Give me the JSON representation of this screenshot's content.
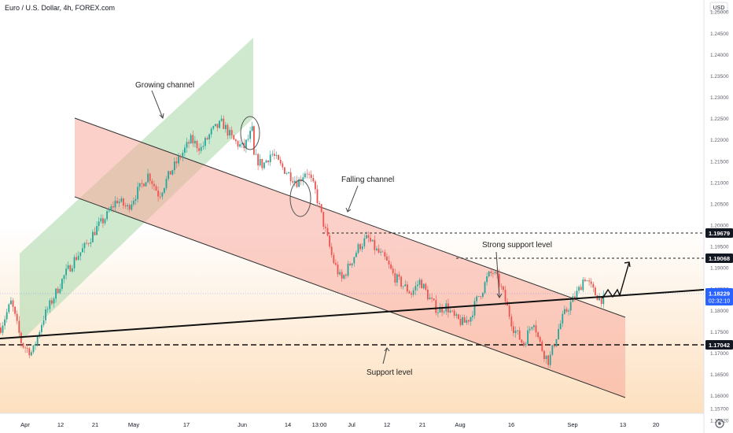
{
  "header": {
    "title": "Euro / U.S. Dollar, 4h, FOREX.com",
    "currency": "USD"
  },
  "colors": {
    "up": "#26a69a",
    "down": "#ef5350",
    "green_fill": "#a5d6a7",
    "red_fill": "#f5a49b",
    "orange_light": "#fde2c4",
    "badge_blue": "#2962ff",
    "line": "#111111"
  },
  "chart_data": {
    "type": "candlestick",
    "symbol": "EURUSD",
    "timeframe": "4h",
    "y_axis": {
      "unit": "USD",
      "range": [
        1.1542,
        1.2506
      ],
      "ticks": [
        "1.25000",
        "1.24500",
        "1.24000",
        "1.23500",
        "1.23000",
        "1.22500",
        "1.22000",
        "1.21500",
        "1.21000",
        "1.20500",
        "1.20000",
        "1.19500",
        "1.19000",
        "1.18500",
        "1.18000",
        "1.17500",
        "1.17000",
        "1.16500",
        "1.16000",
        "1.15700",
        "1.15420"
      ]
    },
    "x_axis": {
      "labels": [
        "Apr",
        "12",
        "21",
        "May",
        "17",
        "Jun",
        "14",
        "13:00",
        "Jul",
        "12",
        "21",
        "Aug",
        "16",
        "Sep",
        "13",
        "20"
      ]
    },
    "price_path": [
      [
        1.176,
        1.182,
        1.172,
        1.17,
        1.178,
        1.183,
        1.188,
        1.192,
        1.195,
        1.199,
        1.202,
        1.206,
        1.204,
        1.208,
        1.212,
        1.207,
        1.212,
        1.216,
        1.22,
        1.218,
        1.222,
        1.224,
        1.22,
        1.218,
        1.223
      ],
      [
        1.216,
        1.214,
        1.217,
        1.214,
        1.212,
        1.21,
        1.213,
        1.208,
        1.2,
        1.192,
        1.187,
        1.191,
        1.195,
        1.197,
        1.194,
        1.192,
        1.188,
        1.186,
        1.184,
        1.187,
        1.183,
        1.18,
        1.181,
        1.178,
        1.177,
        1.179
      ],
      [
        1.18,
        1.183,
        1.185,
        1.188,
        1.189,
        1.187,
        1.184,
        1.18,
        1.176,
        1.174,
        1.172,
        1.175,
        1.178,
        1.173,
        1.17,
        1.168,
        1.172,
        1.176,
        1.179,
        1.181,
        1.183,
        1.185,
        1.188,
        1.186,
        1.184,
        1.183,
        1.1823
      ]
    ],
    "last_price": "1.18229",
    "countdown": "02:32:10",
    "price_labels": [
      {
        "text": "1.19679",
        "value": 1.19679
      },
      {
        "text": "1.19068",
        "value": 1.19068
      },
      {
        "text": "1.17042",
        "value": 1.17042
      }
    ],
    "annotations": [
      {
        "text": "Growing channel",
        "type": "channel"
      },
      {
        "text": "Falling channel",
        "type": "channel"
      },
      {
        "text": "Strong support level",
        "type": "level"
      },
      {
        "text": "Support level",
        "type": "level"
      }
    ]
  }
}
